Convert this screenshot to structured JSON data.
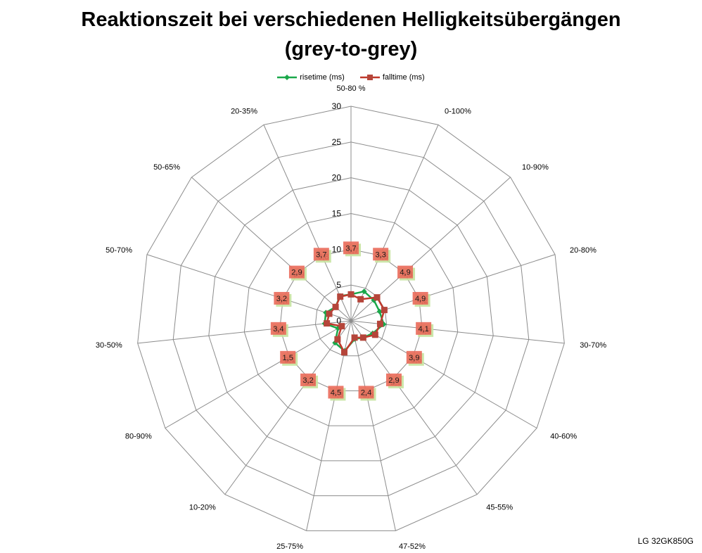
{
  "title_line1": "Reaktionszeit bei verschiedenen Helligkeitsübergängen",
  "title_line2": "(grey-to-grey)",
  "footer": "LG 32GK850G",
  "colors": {
    "risetime": "#1aa84a",
    "falltime": "#c0392b",
    "risetime_label_bg": "#c6e3a0",
    "falltime_label_bg": "#ea6a5a",
    "grid": "#8c8c8c"
  },
  "chart_data": {
    "type": "radar",
    "title": "Reaktionszeit bei verschiedenen Helligkeitsübergängen (grey-to-grey)",
    "categories": [
      "50-80 %",
      "0-100%",
      "10-90%",
      "20-80%",
      "30-70%",
      "40-60%",
      "45-55%",
      "47-52%",
      "25-75%",
      "10-20%",
      "80-90%",
      "30-50%",
      "50-70%",
      "50-65%",
      "20-35%"
    ],
    "rmin": 0,
    "rmax": 30,
    "ticks": [
      0,
      5,
      10,
      15,
      20,
      25,
      30
    ],
    "tick_labels": [
      "0",
      "5",
      "10",
      "15",
      "20",
      "25",
      "30"
    ],
    "series": [
      {
        "name": "risetime (ms)",
        "values": [
          3.7,
          4.5,
          4.3,
          4.2,
          4.6,
          3.5,
          2.9,
          2.6,
          4.3,
          3.8,
          2.1,
          3.7,
          3.7,
          2.9,
          3.8
        ],
        "labels": [
          "3,7",
          "4,5",
          "4,3",
          "4,2",
          "4,6",
          "3,5",
          "2,9",
          "2,6",
          "4,3",
          "3,8",
          "2,1",
          "3,7",
          "3,7",
          "2,9",
          "3,8"
        ]
      },
      {
        "name": "falltime (ms)",
        "values": [
          3.7,
          3.3,
          4.9,
          4.9,
          4.1,
          3.9,
          2.9,
          2.4,
          4.5,
          3.2,
          1.5,
          3.4,
          3.2,
          2.9,
          3.7
        ],
        "labels": [
          "3,7",
          "3,3",
          "4,9",
          "4,9",
          "4,1",
          "3,9",
          "2,9",
          "2,4",
          "4,5",
          "3,2",
          "1,5",
          "3,4",
          "3,2",
          "2,9",
          "3,7"
        ]
      }
    ],
    "legend_position": "top"
  }
}
